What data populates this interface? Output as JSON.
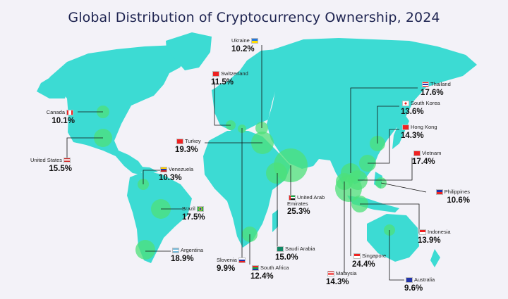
{
  "title": "Global Distribution of Cryptocurrency Ownership, 2024",
  "colors": {
    "land": "#3cdbd3",
    "bubble": "#4ee07a",
    "leader": "#111111",
    "title": "#1d2350",
    "background": "#f3f2f8"
  },
  "countries": [
    {
      "id": "canada",
      "name": "Canada",
      "value": "10.1%",
      "flag": "canada-flag"
    },
    {
      "id": "usa",
      "name": "United States",
      "value": "15.5%",
      "flag": "usa-flag"
    },
    {
      "id": "venezuela",
      "name": "Venezuela",
      "value": "10.3%",
      "flag": "venezuela-flag"
    },
    {
      "id": "brazil",
      "name": "Brazil",
      "value": "17.5%",
      "flag": "brazil-flag"
    },
    {
      "id": "argentina",
      "name": "Argentina",
      "value": "18.9%",
      "flag": "argentina-flag"
    },
    {
      "id": "switzerland",
      "name": "Switzerland",
      "value": "11.5%",
      "flag": "switzerland-flag"
    },
    {
      "id": "ukraine",
      "name": "Ukraine",
      "value": "10.2%",
      "flag": "ukraine-flag"
    },
    {
      "id": "turkey",
      "name": "Turkey",
      "value": "19.3%",
      "flag": "turkey-flag"
    },
    {
      "id": "slovenia",
      "name": "Slovenia",
      "value": "9.9%",
      "flag": "slovenia-flag"
    },
    {
      "id": "south_africa",
      "name": "South Africa",
      "value": "12.4%",
      "flag": "south-africa-flag"
    },
    {
      "id": "saudi",
      "name": "Saudi Arabia",
      "value": "15.0%",
      "flag": "saudi-arabia-flag"
    },
    {
      "id": "uae",
      "name": "United Arab Emirates",
      "value": "25.3%",
      "flag": "uae-flag"
    },
    {
      "id": "thailand",
      "name": "Thailand",
      "value": "17.6%",
      "flag": "thailand-flag"
    },
    {
      "id": "south_korea",
      "name": "South Korea",
      "value": "13.6%",
      "flag": "south-korea-flag"
    },
    {
      "id": "hong_kong",
      "name": "Hong Kong",
      "value": "14.3%",
      "flag": "hong-kong-flag"
    },
    {
      "id": "vietnam",
      "name": "Vietnam",
      "value": "17.4%",
      "flag": "vietnam-flag"
    },
    {
      "id": "philippines",
      "name": "Philippines",
      "value": "10.6%",
      "flag": "philippines-flag"
    },
    {
      "id": "indonesia",
      "name": "Indonesia",
      "value": "13.9%",
      "flag": "indonesia-flag"
    },
    {
      "id": "singapore",
      "name": "Singapore",
      "value": "24.4%",
      "flag": "singapore-flag"
    },
    {
      "id": "malaysia",
      "name": "Malaysia",
      "value": "14.3%",
      "flag": "malaysia-flag"
    },
    {
      "id": "australia",
      "name": "Australia",
      "value": "9.6%",
      "flag": "australia-flag"
    }
  ]
}
